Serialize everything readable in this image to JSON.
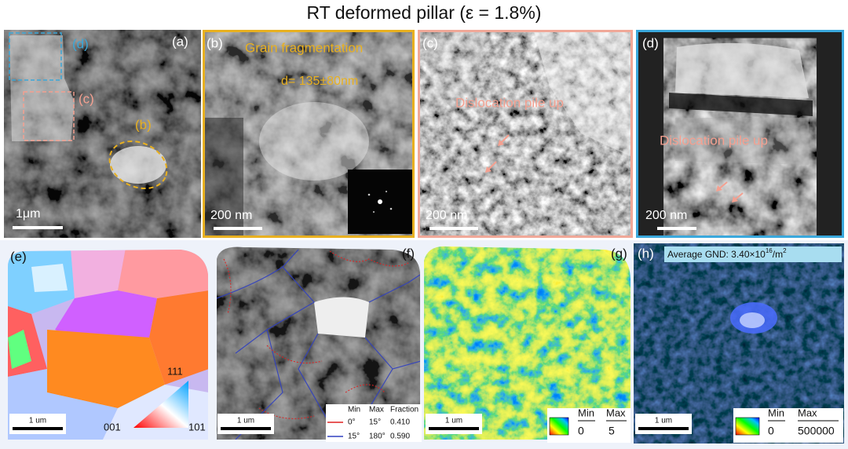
{
  "title": "RT deformed pillar (ε = 1.8%)",
  "panels": {
    "a": {
      "label": "(a)",
      "inset_d": "(d)",
      "inset_c": "(c)",
      "inset_b": "(b)",
      "scale_bar": "1μm"
    },
    "b": {
      "label": "(b)",
      "annotation": "Grain fragmentation",
      "grain_size": "d= 135±80nm",
      "scale_bar": "200 nm"
    },
    "c": {
      "label": "(c)",
      "annotation": "Dislocation pile up",
      "scale_bar": "200 nm"
    },
    "d": {
      "label": "(d)",
      "annotation": "Dislocation pile up",
      "scale_bar": "200 nm"
    },
    "e": {
      "label": "(e)",
      "scale_bar": "1 um",
      "pole_111": "111",
      "pole_001": "001",
      "pole_101": "101"
    },
    "f": {
      "label": "(f)",
      "scale_bar": "1 um",
      "legend": {
        "header": [
          "Min",
          "Max",
          "Fraction"
        ],
        "rows": [
          [
            "0°",
            "15°",
            "0.410"
          ],
          [
            "15°",
            "180°",
            "0.590"
          ]
        ]
      }
    },
    "g": {
      "label": "(g)",
      "scale_bar": "1 um",
      "colorbar": {
        "min_label": "Min",
        "max_label": "Max",
        "min": "0",
        "max": "5"
      }
    },
    "h": {
      "label": "(h)",
      "gnd_text": "Average GND: 3.40×10",
      "gnd_exp": "16",
      "gnd_unit": "/m",
      "gnd_unit_exp": "2",
      "scale_bar": "1 um",
      "colorbar": {
        "min_label": "Min",
        "max_label": "Max",
        "min": "0",
        "max": "500000"
      }
    }
  }
}
